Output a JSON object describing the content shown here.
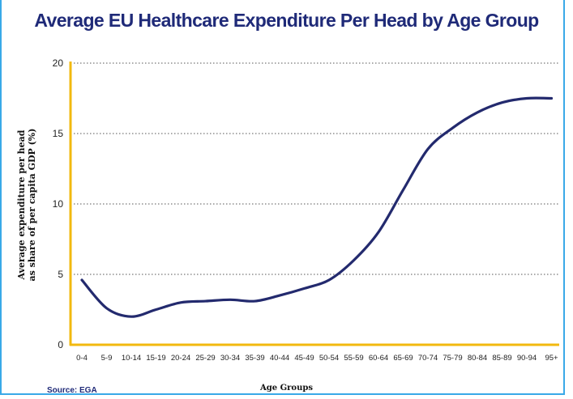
{
  "chart_data": {
    "type": "line",
    "title": "Average EU Healthcare Expenditure Per Head by Age Group",
    "ylabel_line1": "Average expenditure per head",
    "ylabel_line2": "as share of per capita GDP (%)",
    "xlabel": "Age Groups",
    "source": "Source: EGA",
    "ylim": [
      0,
      20
    ],
    "yticks": [
      0,
      5,
      10,
      15,
      20
    ],
    "grid": true,
    "categories": [
      "0-4",
      "5-9",
      "10-14",
      "15-19",
      "20-24",
      "25-29",
      "30-34",
      "35-39",
      "40-44",
      "45-49",
      "50-54",
      "55-59",
      "60-64",
      "65-69",
      "70-74",
      "75-79",
      "80-84",
      "85-89",
      "90-94",
      "95+"
    ],
    "series": [
      {
        "values": [
          4.6,
          2.6,
          2.0,
          2.5,
          3.0,
          3.1,
          3.2,
          3.1,
          3.5,
          4.0,
          4.6,
          6.0,
          8.0,
          11.0,
          13.9,
          15.4,
          16.5,
          17.2,
          17.5,
          17.5
        ]
      }
    ],
    "colors": {
      "line": "#232a6e",
      "axis": "#f2b90f",
      "grid": "#555555",
      "title": "#1f2a78",
      "frame": "#39a9e8"
    }
  }
}
